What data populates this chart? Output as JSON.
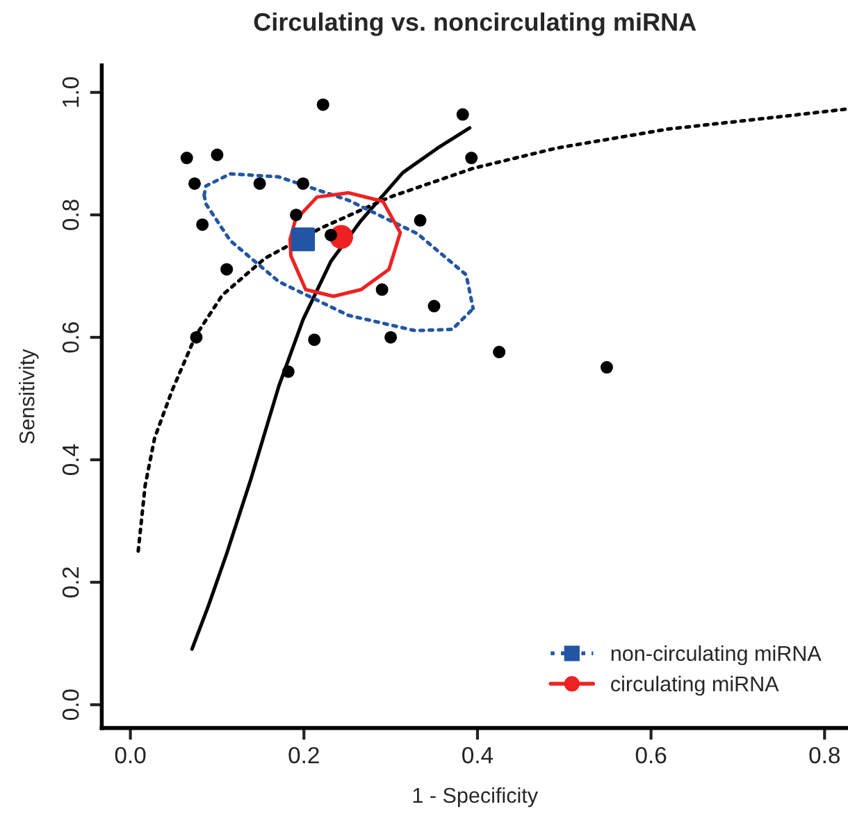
{
  "chart_data": {
    "type": "scatter",
    "title": "Circulating vs. noncirculating miRNA",
    "xlabel": "1 - Specificity",
    "ylabel": "Sensitivity",
    "xlim": [
      -0.033,
      0.827
    ],
    "ylim": [
      -0.038,
      1.044
    ],
    "xticks": [
      {
        "value": 0,
        "label": "0.0"
      },
      0.2,
      0.4,
      0.6,
      0.8
    ],
    "yticks": [
      {
        "value": 0,
        "label": "0.0"
      },
      0.2,
      0.4,
      0.6,
      0.8,
      {
        "value": 1,
        "label": "1.0"
      }
    ],
    "grid": false,
    "legend": "bottom right",
    "series": [
      {
        "color": "#000000",
        "marker": "circle",
        "x": [
          0.065,
          0.222,
          0.383,
          0.393,
          0.083,
          0.191,
          0.231,
          0.334,
          0.29,
          0.35,
          0.3,
          0.212,
          0.076,
          0.182
        ],
        "values": [
          0.893,
          0.98,
          0.964,
          0.893,
          0.784,
          0.8,
          0.767,
          0.791,
          0.678,
          0.651,
          0.6,
          0.596,
          0.6,
          0.544
        ]
      },
      {
        "color": "#000000",
        "marker": "circle",
        "x": [
          0.1,
          0.074,
          0.149,
          0.199,
          0.111,
          0.425,
          0.549
        ],
        "values": [
          0.898,
          0.851,
          0.851,
          0.851,
          0.711,
          0.576,
          0.551
        ]
      },
      {
        "type": "line",
        "color": "#000000",
        "line_style": "solid",
        "x": [
          0.071,
          0.09,
          0.111,
          0.139,
          0.171,
          0.199,
          0.231,
          0.266,
          0.314,
          0.354,
          0.391
        ],
        "values": [
          0.091,
          0.162,
          0.247,
          0.369,
          0.52,
          0.629,
          0.724,
          0.791,
          0.869,
          0.909,
          0.942
        ]
      },
      {
        "type": "line",
        "color": "#000000",
        "line_style": "dotted",
        "x": [
          0.009,
          0.017,
          0.028,
          0.048,
          0.075,
          0.106,
          0.155,
          0.219,
          0.299,
          0.395,
          0.491,
          0.619,
          0.747,
          0.827
        ],
        "values": [
          0.251,
          0.358,
          0.436,
          0.513,
          0.602,
          0.669,
          0.729,
          0.778,
          0.829,
          0.876,
          0.909,
          0.94,
          0.96,
          0.973
        ]
      },
      {
        "type": "line",
        "color": "#2255a4",
        "line_style": "dotted",
        "x": [
          0.085,
          0.087,
          0.115,
          0.171,
          0.251,
          0.331,
          0.387,
          0.395,
          null,
          0.085,
          0.087,
          0.115,
          0.171,
          0.251,
          0.328,
          0.371,
          0.395
        ],
        "values": [
          0.832,
          0.847,
          0.867,
          0.862,
          0.824,
          0.769,
          0.702,
          0.647,
          null,
          0.832,
          0.818,
          0.758,
          0.691,
          0.636,
          0.611,
          0.613,
          0.647
        ]
      },
      {
        "type": "line",
        "color": "#ee2222",
        "line_style": "solid",
        "x": [
          0.184,
          0.19,
          0.215,
          0.251,
          0.291,
          0.311,
          null,
          0.184,
          0.185,
          0.202,
          0.234,
          0.266,
          0.298,
          0.311
        ],
        "values": [
          0.76,
          0.791,
          0.829,
          0.836,
          0.822,
          0.771,
          null,
          0.76,
          0.733,
          0.678,
          0.667,
          0.678,
          0.711,
          0.771
        ]
      },
      {
        "name": "non-circulating miRNA",
        "color": "#2255a4",
        "marker": "square",
        "line_style": "dotted",
        "x": [
          0.199
        ],
        "values": [
          0.76
        ]
      },
      {
        "name": "circulating miRNA",
        "color": "#ee2222",
        "marker": "circle",
        "line_style": "solid",
        "x": [
          0.243
        ],
        "values": [
          0.764
        ]
      }
    ]
  }
}
